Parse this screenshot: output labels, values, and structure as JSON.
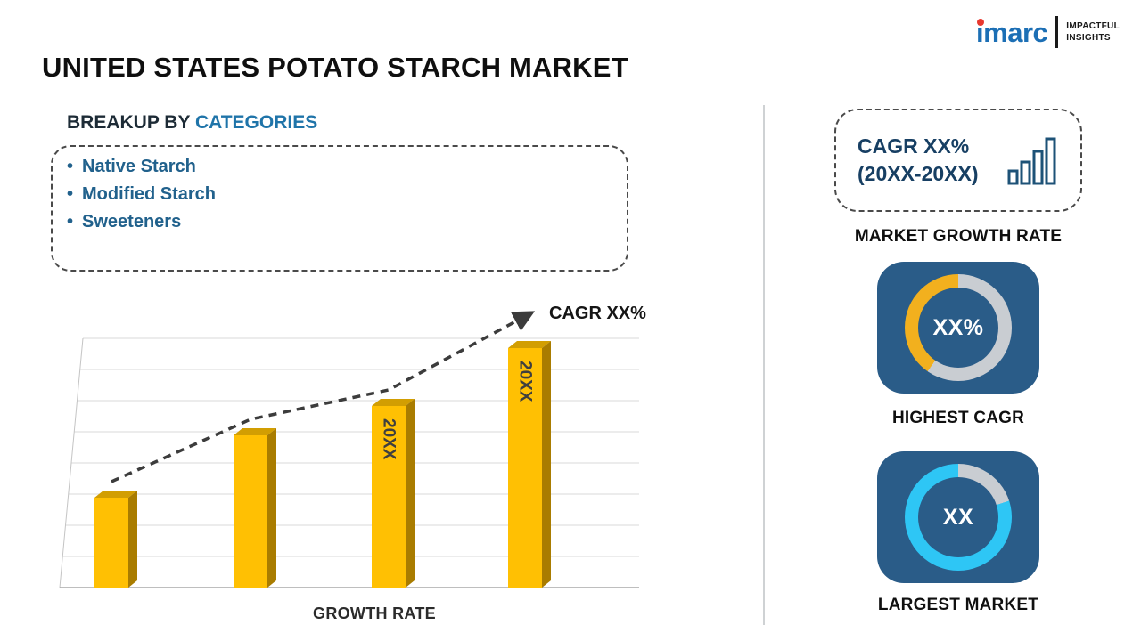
{
  "logo": {
    "brand": "imarc",
    "tagline_line1": "IMPACTFUL",
    "tagline_line2": "INSIGHTS"
  },
  "title": "UNITED STATES POTATO STARCH MARKET",
  "left": {
    "heading_prefix": "BREAKUP BY ",
    "heading_highlight": "CATEGORIES",
    "bullet": "•",
    "categories": [
      "Native Starch",
      "Modified Starch",
      "Sweeteners"
    ]
  },
  "chart_data": {
    "type": "bar",
    "categories": [
      "",
      "",
      "20XX",
      "20XX"
    ],
    "values": [
      36,
      61,
      73,
      96
    ],
    "ylim": [
      0,
      100
    ],
    "title": "",
    "xlabel": "GROWTH RATE",
    "ylabel": "",
    "grid": "horizontal",
    "trend_label": "CAGR XX%",
    "trend_style": "dashed-arrow",
    "bar_colors": {
      "front": "#FFC003",
      "top": "#D29E02",
      "side": "#A97C00"
    },
    "trend_color": "#3c3c3c"
  },
  "right": {
    "card_color": "#2a5c88",
    "cagr_box": {
      "line1": "CAGR XX%",
      "line2": "(20XX-20XX)"
    },
    "bar_icon_color": "#1d5277",
    "market_growth_rate_label": "MARKET GROWTH RATE",
    "highest_cagr": {
      "value": "XX%",
      "label": "HIGHEST CAGR",
      "ring": {
        "color": "#F2B01E",
        "track": "#C9CDD2",
        "start_deg": 215,
        "sweep_deg": 145
      }
    },
    "largest_market": {
      "value": "XX",
      "label": "LARGEST MARKET",
      "ring": {
        "color": "#2EC6F5",
        "track": "#C9CDD2",
        "start_deg": 72,
        "sweep_deg": 288
      }
    }
  }
}
